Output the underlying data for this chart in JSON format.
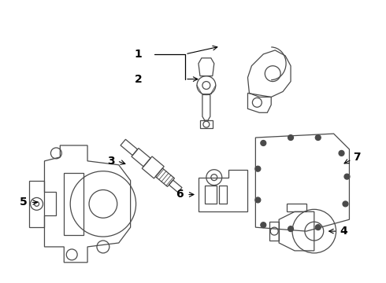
{
  "bg_color": "#ffffff",
  "line_color": "#4a4a4a",
  "label_color": "#000000",
  "figsize": [
    4.9,
    3.6
  ],
  "dpi": 100,
  "label_fontsize": 10,
  "lw": 0.9
}
